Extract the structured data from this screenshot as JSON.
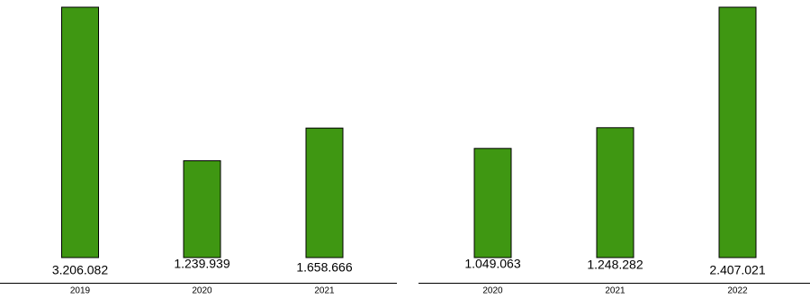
{
  "colors": {
    "bar_fill": "#3f9712",
    "bar_stroke": "#000000",
    "axis": "#000000",
    "background": "#ffffff"
  },
  "chart_data": [
    {
      "type": "bar",
      "title": "",
      "xlabel": "",
      "ylabel": "",
      "categories": [
        "2019",
        "2020",
        "2021"
      ],
      "values": [
        3206082,
        1239939,
        1658666
      ],
      "value_labels": [
        "3.206.082",
        "1.239.939",
        "1.658.666"
      ],
      "ylim": [
        0,
        3206082
      ],
      "grid": false,
      "legend": "none"
    },
    {
      "type": "bar",
      "title": "",
      "xlabel": "",
      "ylabel": "",
      "categories": [
        "2020",
        "2021",
        "2022"
      ],
      "values": [
        1049063,
        1248282,
        2407021
      ],
      "value_labels": [
        "1.049.063",
        "1.248.282",
        "2.407.021"
      ],
      "ylim": [
        0,
        2407021
      ],
      "grid": false,
      "legend": "none"
    }
  ]
}
